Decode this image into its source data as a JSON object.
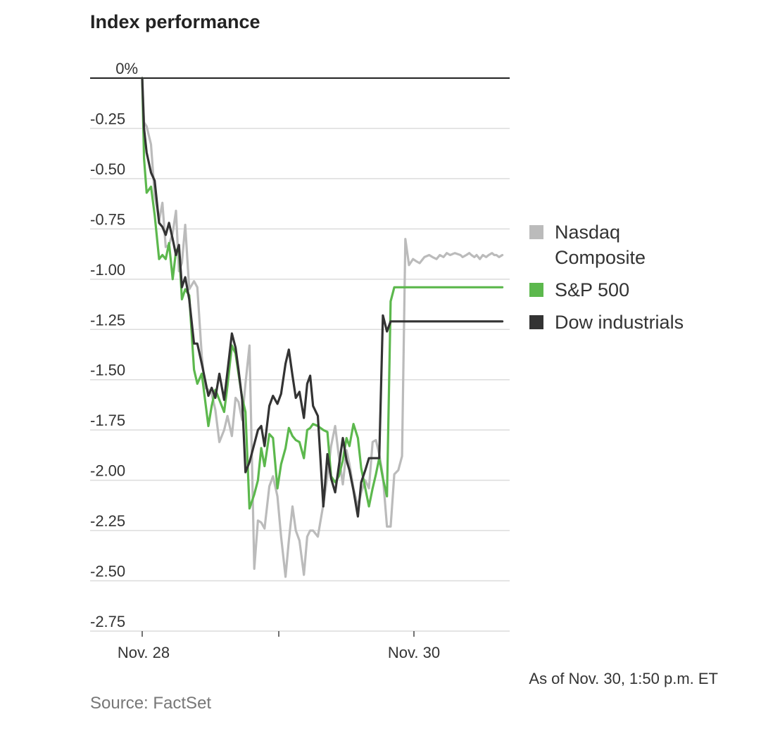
{
  "chart_data": {
    "type": "line",
    "title": "Index performance",
    "x_ticks": [
      "Nov. 28",
      "Nov. 30"
    ],
    "y_ticks": [
      "0%",
      "-0.25",
      "-0.50",
      "-0.75",
      "-1.00",
      "-1.25",
      "-1.50",
      "-1.75",
      "-2.00",
      "-2.25",
      "-2.50",
      "-2.75"
    ],
    "ylim": [
      -2.75,
      0
    ],
    "xlim": [
      0,
      1
    ],
    "grid": true,
    "legend_position": "right",
    "series": [
      {
        "name": "Nasdaq Composite",
        "label_lines": [
          "Nasdaq",
          "Composite"
        ],
        "color": "#bbbbbb",
        "x": [
          0,
          0.005,
          0.012,
          0.024,
          0.034,
          0.046,
          0.055,
          0.064,
          0.073,
          0.083,
          0.092,
          0.1,
          0.108,
          0.117,
          0.128,
          0.141,
          0.15,
          0.162,
          0.171,
          0.18,
          0.189,
          0.199,
          0.21,
          0.223,
          0.232,
          0.244,
          0.254,
          0.262,
          0.272,
          0.281,
          0.292,
          0.305,
          0.315,
          0.324,
          0.333,
          0.346,
          0.356,
          0.368,
          0.378,
          0.39,
          0.399,
          0.409,
          0.418,
          0.428,
          0.44,
          0.449,
          0.457,
          0.465,
          0.478,
          0.493,
          0.504,
          0.514,
          0.525,
          0.535,
          0.546,
          0.556,
          0.564,
          0.575,
          0.587,
          0.596,
          0.607,
          0.617,
          0.627,
          0.636,
          0.645,
          0.655,
          0.666,
          0.676,
          0.686,
          0.697,
          0.707,
          0.716,
          0.726,
          0.737,
          0.745,
          0.755,
          0.768,
          0.781,
          0.79,
          0.801,
          0.81,
          0.82,
          0.829,
          0.838,
          0.851,
          0.866,
          0.872,
          0.882,
          0.89,
          0.896,
          0.904,
          0.91,
          0.919,
          0.927,
          0.936,
          0.943,
          0.952,
          0.958,
          0.964,
          0.971,
          0.98
        ],
        "y": [
          0,
          -0.22,
          -0.24,
          -0.33,
          -0.58,
          -0.71,
          -0.62,
          -0.84,
          -0.83,
          -0.77,
          -0.66,
          -0.96,
          -0.92,
          -0.73,
          -1.05,
          -1.01,
          -1.04,
          -1.38,
          -1.54,
          -1.55,
          -1.57,
          -1.65,
          -1.81,
          -1.75,
          -1.68,
          -1.78,
          -1.59,
          -1.61,
          -1.7,
          -1.52,
          -1.33,
          -2.44,
          -2.2,
          -2.21,
          -2.24,
          -2.03,
          -1.98,
          -2.08,
          -2.28,
          -2.48,
          -2.3,
          -2.13,
          -2.25,
          -2.3,
          -2.47,
          -2.28,
          -2.25,
          -2.25,
          -2.28,
          -2.12,
          -1.98,
          -1.83,
          -1.73,
          -1.88,
          -2.02,
          -1.85,
          -1.92,
          -2.04,
          -2.13,
          -2.06,
          -2.0,
          -2.04,
          -1.81,
          -1.8,
          -1.87,
          -1.98,
          -2.23,
          -2.23,
          -1.97,
          -1.95,
          -1.88,
          -0.8,
          -0.93,
          -0.9,
          -0.91,
          -0.92,
          -0.89,
          -0.88,
          -0.89,
          -0.9,
          -0.88,
          -0.89,
          -0.87,
          -0.88,
          -0.87,
          -0.88,
          -0.89,
          -0.88,
          -0.87,
          -0.88,
          -0.89,
          -0.88,
          -0.9,
          -0.88,
          -0.89,
          -0.88,
          -0.87,
          -0.88,
          -0.88,
          -0.89,
          -0.88
        ]
      },
      {
        "name": "S&P 500",
        "label_lines": [
          "S&P 500"
        ],
        "color": "#5cb84d",
        "x": [
          0,
          0.005,
          0.012,
          0.024,
          0.034,
          0.046,
          0.055,
          0.064,
          0.073,
          0.083,
          0.092,
          0.1,
          0.108,
          0.117,
          0.128,
          0.141,
          0.15,
          0.162,
          0.171,
          0.18,
          0.189,
          0.199,
          0.21,
          0.223,
          0.232,
          0.244,
          0.254,
          0.262,
          0.272,
          0.281,
          0.292,
          0.305,
          0.315,
          0.324,
          0.333,
          0.346,
          0.356,
          0.368,
          0.378,
          0.39,
          0.399,
          0.409,
          0.418,
          0.428,
          0.44,
          0.449,
          0.457,
          0.465,
          0.478,
          0.493,
          0.504,
          0.514,
          0.525,
          0.535,
          0.546,
          0.556,
          0.564,
          0.575,
          0.587,
          0.596,
          0.607,
          0.617,
          0.627,
          0.636,
          0.645,
          0.655,
          0.666,
          0.676,
          0.686,
          0.697,
          0.707,
          0.716,
          0.726,
          0.737,
          0.745,
          0.755,
          0.768,
          0.781,
          0.79,
          0.801,
          0.81,
          0.82,
          0.829,
          0.838,
          0.851,
          0.866,
          0.872,
          0.882,
          0.89,
          0.896,
          0.904,
          0.91,
          0.919,
          0.927,
          0.936,
          0.943,
          0.952,
          0.958,
          0.964,
          0.971,
          0.98
        ],
        "y": [
          0,
          -0.4,
          -0.57,
          -0.54,
          -0.68,
          -0.9,
          -0.88,
          -0.9,
          -0.82,
          -1.0,
          -0.86,
          -0.84,
          -1.1,
          -1.05,
          -1.08,
          -1.45,
          -1.52,
          -1.47,
          -1.6,
          -1.73,
          -1.63,
          -1.55,
          -1.6,
          -1.66,
          -1.53,
          -1.33,
          -1.37,
          -1.47,
          -1.59,
          -1.66,
          -2.14,
          -2.07,
          -2.0,
          -1.84,
          -1.93,
          -1.77,
          -1.79,
          -2.04,
          -1.92,
          -1.84,
          -1.74,
          -1.78,
          -1.8,
          -1.81,
          -1.89,
          -1.75,
          -1.74,
          -1.72,
          -1.73,
          -1.75,
          -1.76,
          -1.98,
          -2.01,
          -1.98,
          -1.9,
          -1.79,
          -1.83,
          -1.72,
          -1.79,
          -1.94,
          -2.04,
          -2.13,
          -2.04,
          -1.97,
          -1.89,
          -1.99,
          -2.08,
          -1.11,
          -1.04,
          -1.04,
          -1.04,
          -1.04,
          -1.04,
          -1.04,
          -1.04,
          -1.04,
          -1.04,
          -1.04,
          -1.04,
          -1.04,
          -1.04,
          -1.04,
          -1.04,
          -1.04,
          -1.04,
          -1.04,
          -1.04,
          -1.04,
          -1.04,
          -1.04,
          -1.04,
          -1.04,
          -1.04,
          -1.04,
          -1.04,
          -1.04,
          -1.04,
          -1.04,
          -1.04,
          -1.04,
          -1.04
        ]
      },
      {
        "name": "Dow industrials",
        "label_lines": [
          "Dow industrials"
        ],
        "color": "#333333",
        "x": [
          0,
          0.005,
          0.012,
          0.024,
          0.034,
          0.046,
          0.055,
          0.064,
          0.073,
          0.083,
          0.092,
          0.1,
          0.108,
          0.117,
          0.128,
          0.141,
          0.15,
          0.162,
          0.171,
          0.18,
          0.189,
          0.199,
          0.21,
          0.223,
          0.232,
          0.244,
          0.254,
          0.262,
          0.272,
          0.281,
          0.292,
          0.305,
          0.315,
          0.324,
          0.333,
          0.346,
          0.356,
          0.368,
          0.378,
          0.39,
          0.399,
          0.409,
          0.418,
          0.428,
          0.44,
          0.449,
          0.457,
          0.465,
          0.478,
          0.493,
          0.504,
          0.514,
          0.525,
          0.535,
          0.546,
          0.556,
          0.564,
          0.575,
          0.587,
          0.596,
          0.607,
          0.617,
          0.627,
          0.636,
          0.645,
          0.655,
          0.666,
          0.676,
          0.686,
          0.697,
          0.707,
          0.716,
          0.726,
          0.737,
          0.745,
          0.755,
          0.768,
          0.781,
          0.79,
          0.801,
          0.81,
          0.82,
          0.829,
          0.838,
          0.851,
          0.866,
          0.872,
          0.882,
          0.89,
          0.896,
          0.904,
          0.91,
          0.919,
          0.927,
          0.936,
          0.943,
          0.952,
          0.958,
          0.964,
          0.971,
          0.98
        ],
        "y": [
          0,
          -0.25,
          -0.37,
          -0.47,
          -0.51,
          -0.72,
          -0.74,
          -0.78,
          -0.72,
          -0.8,
          -0.88,
          -0.83,
          -1.04,
          -0.99,
          -1.1,
          -1.32,
          -1.32,
          -1.42,
          -1.5,
          -1.58,
          -1.54,
          -1.59,
          -1.47,
          -1.6,
          -1.46,
          -1.27,
          -1.34,
          -1.45,
          -1.6,
          -1.96,
          -1.91,
          -1.82,
          -1.75,
          -1.73,
          -1.83,
          -1.63,
          -1.58,
          -1.62,
          -1.57,
          -1.42,
          -1.35,
          -1.48,
          -1.59,
          -1.56,
          -1.69,
          -1.52,
          -1.48,
          -1.63,
          -1.68,
          -2.13,
          -1.87,
          -1.99,
          -2.06,
          -1.93,
          -1.79,
          -1.9,
          -1.95,
          -2.05,
          -2.18,
          -2.01,
          -1.95,
          -1.89,
          -1.89,
          -1.89,
          -1.89,
          -1.18,
          -1.26,
          -1.21,
          -1.21,
          -1.21,
          -1.21,
          -1.21,
          -1.21,
          -1.21,
          -1.21,
          -1.21,
          -1.21,
          -1.21,
          -1.21,
          -1.21,
          -1.21,
          -1.21,
          -1.21,
          -1.21,
          -1.21,
          -1.21,
          -1.21,
          -1.21,
          -1.21,
          -1.21,
          -1.21,
          -1.21,
          -1.21,
          -1.21,
          -1.21,
          -1.21,
          -1.21,
          -1.21,
          -1.21,
          -1.21,
          -1.21
        ]
      }
    ]
  },
  "footnote": "As of Nov. 30, 1:50 p.m. ET",
  "source": "Source: FactSet"
}
